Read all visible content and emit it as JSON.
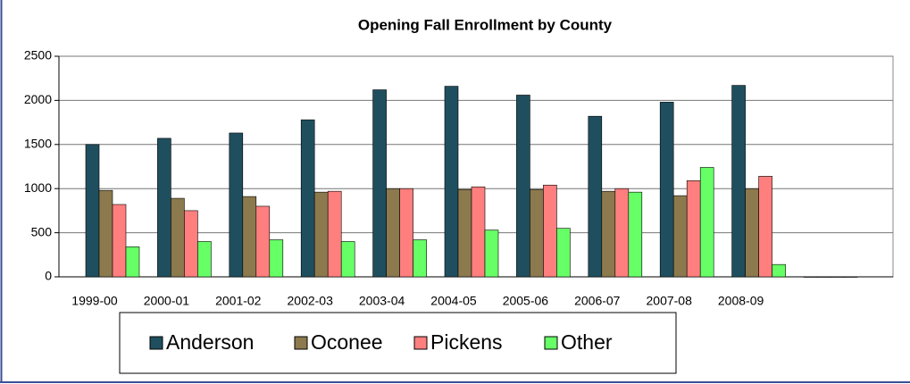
{
  "chart_data": {
    "type": "bar",
    "title": "Opening Fall Enrollment by County",
    "categories": [
      "1999-00",
      "2000-01",
      "2001-02",
      "2002-03",
      "2003-04",
      "2004-05",
      "2005-06",
      "2006-07",
      "2007-08",
      "2008-09",
      null
    ],
    "series": [
      {
        "name": "Anderson",
        "color": "#1F4F5F",
        "values": [
          1500,
          1570,
          1630,
          1780,
          2120,
          2160,
          2060,
          1820,
          1980,
          2170,
          0
        ]
      },
      {
        "name": "Oconee",
        "color": "#8C7A4E",
        "values": [
          980,
          890,
          910,
          960,
          1000,
          990,
          990,
          970,
          920,
          1000,
          0
        ]
      },
      {
        "name": "Pickens",
        "color": "#FF7F7F",
        "values": [
          820,
          750,
          800,
          970,
          1000,
          1020,
          1040,
          1000,
          1090,
          1140,
          0
        ]
      },
      {
        "name": "Other",
        "color": "#66FF66",
        "values": [
          340,
          400,
          420,
          400,
          420,
          530,
          550,
          960,
          1240,
          140,
          0
        ]
      }
    ],
    "ylim": [
      0,
      2500
    ],
    "yticks": [
      0,
      500,
      1000,
      1500,
      2000,
      2500
    ],
    "grid": true,
    "legend": "bottom"
  }
}
